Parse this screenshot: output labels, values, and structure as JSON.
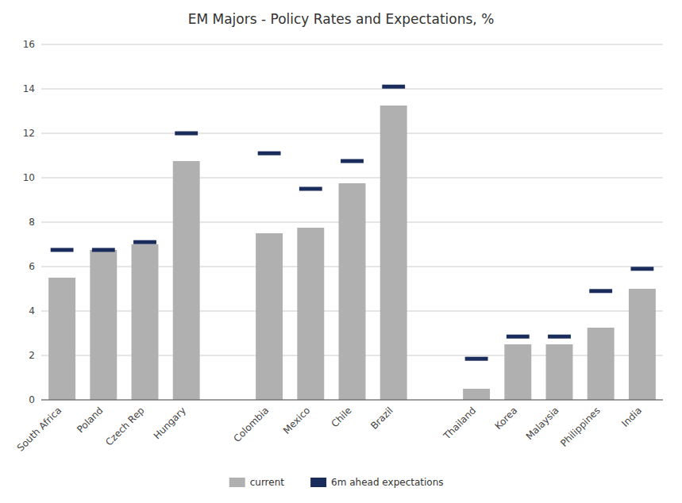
{
  "chart_data": {
    "type": "bar",
    "title": "EM Majors - Policy Rates and Expectations, %",
    "categories": [
      "South Africa",
      "Poland",
      "Czech Rep",
      "Hungary",
      null,
      "Colombia",
      "Mexico",
      "Chile",
      "Brazil",
      null,
      "Thailand",
      "Korea",
      "Malaysia",
      "Philippines",
      "India"
    ],
    "series": [
      {
        "name": "current",
        "color": "#b0b0b0",
        "type": "bar",
        "values": [
          5.5,
          6.75,
          7.0,
          10.75,
          null,
          7.5,
          7.75,
          9.75,
          13.25,
          null,
          0.5,
          2.5,
          2.5,
          3.25,
          5.0
        ]
      },
      {
        "name": "6m ahead expectations",
        "color": "#1a2c5b",
        "type": "scatter",
        "marker": "dash",
        "values": [
          6.75,
          6.75,
          7.1,
          12.0,
          null,
          11.1,
          9.5,
          10.75,
          14.1,
          null,
          1.85,
          2.85,
          2.85,
          4.9,
          5.9
        ]
      }
    ],
    "ylim": [
      0,
      16
    ],
    "yticks": [
      0,
      2,
      4,
      6,
      8,
      10,
      12,
      14,
      16
    ],
    "grid": true,
    "legend": "bottom"
  }
}
